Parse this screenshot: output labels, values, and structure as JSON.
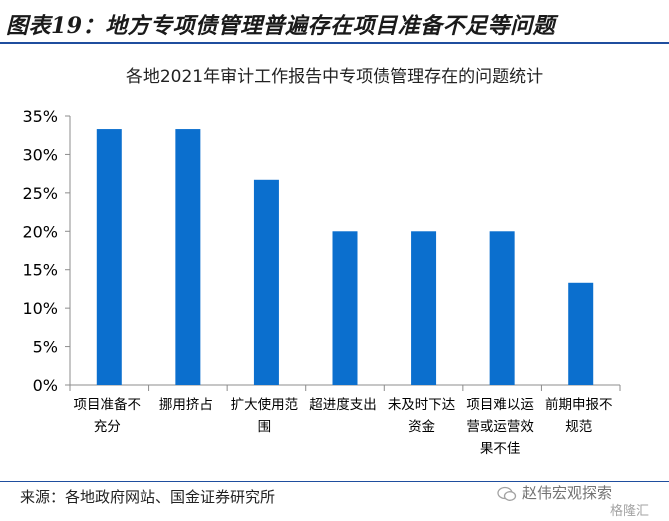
{
  "header": {
    "title": "图表19：地方专项债管理普遍存在项目准备不足等问题"
  },
  "chart_data": {
    "type": "bar",
    "title": "各地2021年审计工作报告中专项债管理存在的问题统计",
    "categories": [
      [
        "项目准备不",
        "充分"
      ],
      [
        "挪用挤占"
      ],
      [
        "扩大使用范",
        "围"
      ],
      [
        "超进度支出"
      ],
      [
        "未及时下达",
        "资金"
      ],
      [
        "项目难以运",
        "营或运营效",
        "果不佳"
      ],
      [
        "前期申报不",
        "规范"
      ]
    ],
    "values": [
      33.3,
      33.3,
      26.7,
      20.0,
      20.0,
      20.0,
      13.3
    ],
    "ylim": [
      0,
      35
    ],
    "yticks": [
      "0%",
      "5%",
      "10%",
      "15%",
      "20%",
      "25%",
      "30%",
      "35%"
    ],
    "bar_color": "#0b6fce",
    "grid": false
  },
  "footer": {
    "source": "来源：各地政府网站、国金证券研究所",
    "watermark": "赵伟宏观探索",
    "watermark_sub": "格隆汇"
  },
  "colors": {
    "accent_rule": "#1f4e9e",
    "bar": "#0b6fce"
  }
}
